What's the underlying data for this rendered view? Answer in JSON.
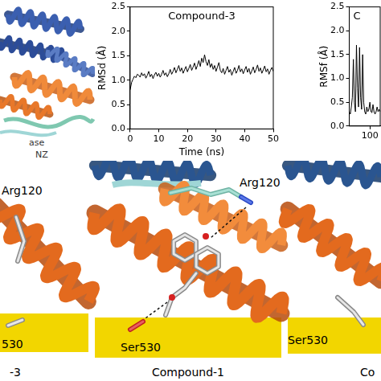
{
  "chart_data": [
    {
      "type": "line",
      "title": "Compound-3",
      "x_label": "Time (ns)",
      "y_label": "RMSd (Å)",
      "color": "#000000",
      "grid": false,
      "x": [
        0,
        0.5,
        1,
        1.5,
        2,
        2.5,
        3,
        3.5,
        4,
        4.5,
        5,
        5.5,
        6,
        6.5,
        7,
        7.5,
        8,
        8.5,
        9,
        9.5,
        10,
        10.5,
        11,
        11.5,
        12,
        12.5,
        13,
        13.5,
        14,
        14.5,
        15,
        15.5,
        16,
        16.5,
        17,
        17.5,
        18,
        18.5,
        19,
        19.5,
        20,
        20.5,
        21,
        21.5,
        22,
        22.5,
        23,
        23.5,
        24,
        24.5,
        25,
        25.5,
        26,
        26.5,
        27,
        27.5,
        28,
        28.5,
        29,
        29.5,
        30,
        30.5,
        31,
        31.5,
        32,
        32.5,
        33,
        33.5,
        34,
        34.5,
        35,
        35.5,
        36,
        36.5,
        37,
        37.5,
        38,
        38.5,
        39,
        39.5,
        40,
        40.5,
        41,
        41.5,
        42,
        42.5,
        43,
        43.5,
        44,
        44.5,
        45,
        45.5,
        46,
        46.5,
        47,
        47.5,
        48,
        48.5,
        49,
        49.5,
        50
      ],
      "values": [
        0.8,
        0.95,
        1.02,
        1.08,
        1.05,
        1.12,
        1.1,
        1.06,
        1.15,
        1.09,
        1.13,
        1.04,
        1.1,
        1.18,
        1.07,
        1.12,
        1.03,
        1.11,
        1.16,
        1.08,
        1.14,
        1.06,
        1.12,
        1.2,
        1.1,
        1.15,
        1.07,
        1.13,
        1.22,
        1.12,
        1.18,
        1.26,
        1.15,
        1.22,
        1.3,
        1.18,
        1.25,
        1.14,
        1.21,
        1.28,
        1.17,
        1.24,
        1.32,
        1.2,
        1.27,
        1.35,
        1.22,
        1.3,
        1.4,
        1.28,
        1.45,
        1.36,
        1.52,
        1.38,
        1.3,
        1.42,
        1.26,
        1.34,
        1.22,
        1.3,
        1.18,
        1.27,
        1.36,
        1.2,
        1.15,
        1.24,
        1.12,
        1.2,
        1.28,
        1.16,
        1.22,
        1.1,
        1.18,
        1.26,
        1.14,
        1.2,
        1.3,
        1.17,
        1.23,
        1.13,
        1.21,
        1.28,
        1.16,
        1.24,
        1.12,
        1.19,
        1.27,
        1.15,
        1.22,
        1.31,
        1.18,
        1.25,
        1.14,
        1.21,
        1.29,
        1.17,
        1.23,
        1.12,
        1.2,
        1.26,
        1.18
      ],
      "xlim": [
        0,
        50
      ],
      "xticks": [
        0,
        10,
        20,
        30,
        40,
        50
      ],
      "ylim": [
        0,
        2.5
      ],
      "yticks": [
        {
          "value": 0,
          "label": "0.0"
        },
        0.5,
        {
          "value": 1,
          "label": "1.0"
        },
        1.5,
        {
          "value": 2,
          "label": "2.0"
        },
        2.5
      ]
    },
    {
      "type": "line",
      "title": "C",
      "y_label": "RMSf (Å)",
      "color": "#000000",
      "grid": false,
      "x": [
        0,
        5,
        10,
        15,
        20,
        25,
        30,
        35,
        40,
        45,
        50,
        55,
        60,
        65,
        70,
        75,
        80,
        85,
        90,
        95,
        100,
        105,
        110,
        115,
        120,
        125,
        130,
        135,
        140,
        145,
        150
      ],
      "values": [
        0.3,
        0.25,
        0.4,
        0.6,
        1.4,
        0.5,
        0.3,
        1.7,
        0.8,
        0.4,
        1.65,
        0.6,
        0.35,
        1.5,
        0.5,
        0.3,
        0.25,
        0.4,
        0.3,
        0.35,
        0.5,
        0.3,
        0.28,
        0.45,
        0.3,
        0.25,
        0.3,
        0.4,
        0.3,
        0.35,
        0.3
      ],
      "xlim": [
        0,
        150
      ],
      "xticks": [
        100
      ],
      "ylim": [
        0,
        2.5
      ],
      "yticks": [
        {
          "value": 0,
          "label": "0.0"
        },
        0.5,
        {
          "value": 1,
          "label": "1.0"
        },
        1.5,
        {
          "value": 2,
          "label": "2.0"
        },
        2.5
      ]
    }
  ],
  "structure_labels": [
    "ase",
    "NZ"
  ],
  "binding_panels": [
    {
      "labels": [
        "Arg120",
        "530"
      ],
      "caption": "-3"
    },
    {
      "labels": [
        "Arg120",
        "Ser530"
      ],
      "caption": "Compound-1"
    },
    {
      "labels": [
        "Ser530"
      ],
      "caption": "Co"
    }
  ]
}
